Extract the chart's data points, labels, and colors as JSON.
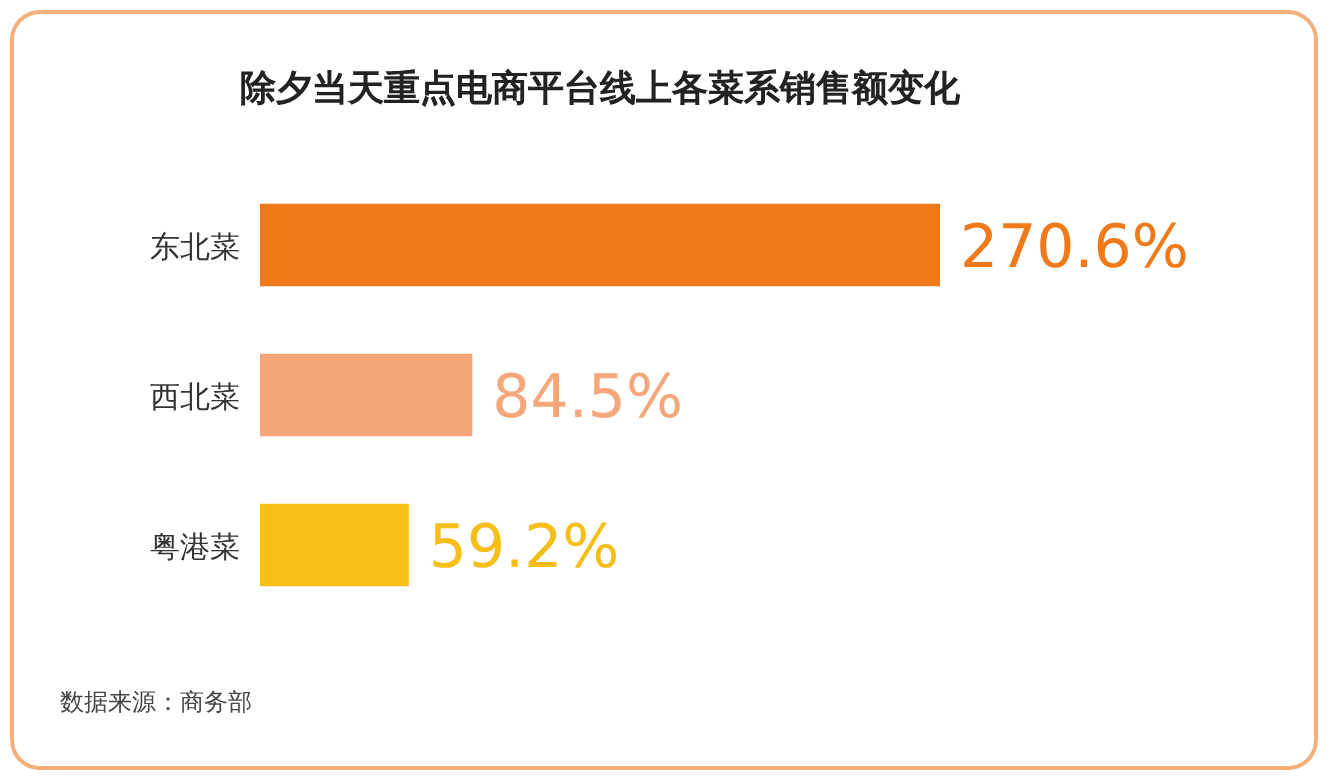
{
  "chart_data": {
    "type": "bar",
    "orientation": "horizontal",
    "title": "除夕当天重点电商平台线上各菜系销售额变化",
    "categories": [
      "东北菜",
      "西北菜",
      "粤港菜"
    ],
    "values": [
      270.6,
      84.5,
      59.2
    ],
    "colors": [
      "#f07a1a",
      "#f5a77a",
      "#f7be1a"
    ],
    "value_labels": [
      "270.6%",
      "84.5%",
      "59.2%"
    ],
    "annotations": [
      "数据来源：商务部"
    ]
  }
}
